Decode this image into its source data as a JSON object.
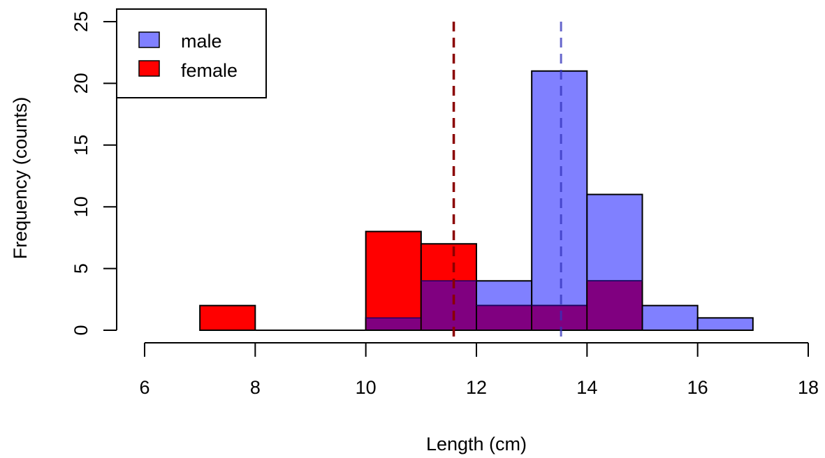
{
  "chart_data": {
    "type": "bar",
    "subtype": "overlaid-histogram",
    "title": "",
    "xlabel": "Length (cm)",
    "ylabel": "Frequency (counts)",
    "xlim": [
      6,
      18
    ],
    "ylim": [
      0,
      25
    ],
    "x_ticks": [
      6,
      8,
      10,
      12,
      14,
      16,
      18
    ],
    "y_ticks": [
      0,
      5,
      10,
      15,
      20,
      25
    ],
    "grid": false,
    "legend_position": "top-left",
    "series": [
      {
        "name": "male",
        "color": "#8080ff",
        "bins": [
          {
            "from": 10,
            "to": 11,
            "count": 1
          },
          {
            "from": 11,
            "to": 12,
            "count": 4
          },
          {
            "from": 12,
            "to": 13,
            "count": 4
          },
          {
            "from": 13,
            "to": 14,
            "count": 21
          },
          {
            "from": 14,
            "to": 15,
            "count": 11
          },
          {
            "from": 15,
            "to": 16,
            "count": 2
          },
          {
            "from": 16,
            "to": 17,
            "count": 1
          }
        ],
        "mean": 13.53,
        "mean_line_color": "#3333bb"
      },
      {
        "name": "female",
        "color": "#ff0000",
        "overlap_color": "#800080",
        "bins": [
          {
            "from": 7,
            "to": 8,
            "count": 2
          },
          {
            "from": 8,
            "to": 9,
            "count": 0
          },
          {
            "from": 9,
            "to": 10,
            "count": 0
          },
          {
            "from": 10,
            "to": 11,
            "count": 8
          },
          {
            "from": 11,
            "to": 12,
            "count": 7
          },
          {
            "from": 12,
            "to": 13,
            "count": 2
          },
          {
            "from": 13,
            "to": 14,
            "count": 2
          },
          {
            "from": 14,
            "to": 15,
            "count": 4
          }
        ],
        "mean": 11.59,
        "mean_line_color": "#8b0000"
      }
    ],
    "legend": [
      {
        "label": "male",
        "color": "#8080ff"
      },
      {
        "label": "female",
        "color": "#ff0000"
      }
    ]
  }
}
